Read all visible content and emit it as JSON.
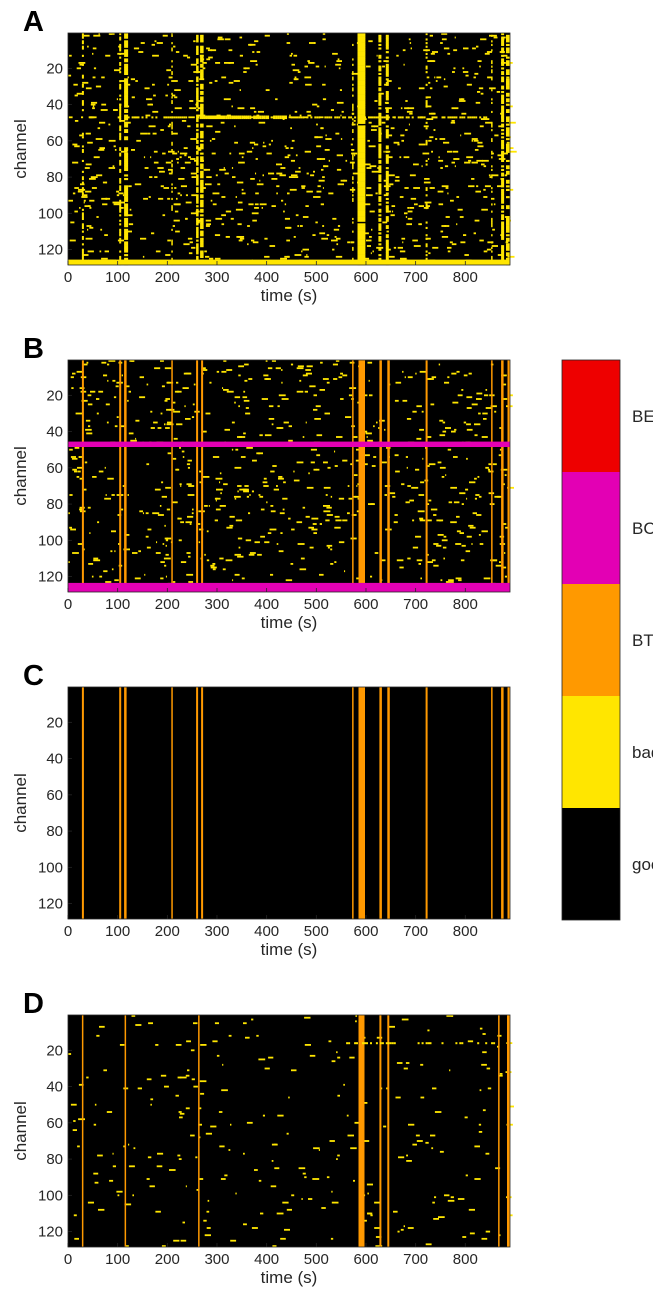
{
  "chart_data": {
    "type": "heatmap",
    "colors": {
      "good": "#000000",
      "bad": "#ffe600",
      "BT": "#ff9900",
      "BC": "#e300b4",
      "BE": "#ee0000"
    },
    "colorbar": {
      "categories": [
        "good",
        "bad",
        "BT",
        "BC",
        "BE"
      ]
    },
    "panels": [
      {
        "letter": "A",
        "xlabel": "time (s)",
        "ylabel": "channel",
        "xlim": [
          0,
          890
        ],
        "ylim": [
          1,
          128
        ],
        "xticks": [
          0,
          100,
          200,
          300,
          400,
          500,
          600,
          700,
          800
        ],
        "yticks": [
          20,
          40,
          60,
          80,
          100,
          120
        ],
        "vbands": [
          {
            "x": 28,
            "w": 4,
            "cat": "bad",
            "d": 0.35
          },
          {
            "x": 103,
            "w": 4,
            "cat": "bad",
            "d": 0.55
          },
          {
            "x": 113,
            "w": 8,
            "cat": "bad",
            "d": 0.75
          },
          {
            "x": 208,
            "w": 3,
            "cat": "bad",
            "d": 0.35
          },
          {
            "x": 258,
            "w": 5,
            "cat": "bad",
            "d": 0.7
          },
          {
            "x": 266,
            "w": 7,
            "cat": "bad",
            "d": 0.8
          },
          {
            "x": 572,
            "w": 3,
            "cat": "bad",
            "d": 0.3
          },
          {
            "x": 583,
            "w": 16,
            "cat": "bad",
            "d": 0.95
          },
          {
            "x": 625,
            "w": 6,
            "cat": "bad",
            "d": 0.7
          },
          {
            "x": 640,
            "w": 6,
            "cat": "bad",
            "d": 0.65
          },
          {
            "x": 720,
            "w": 4,
            "cat": "bad",
            "d": 0.35
          },
          {
            "x": 852,
            "w": 3,
            "cat": "bad",
            "d": 0.35
          },
          {
            "x": 872,
            "w": 6,
            "cat": "bad",
            "d": 0.75
          },
          {
            "x": 882,
            "w": 8,
            "cat": "bad",
            "d": 0.6
          }
        ],
        "hbands": [
          {
            "ch": 127,
            "h": 3,
            "cat": "bad"
          },
          {
            "ch": 47,
            "h": 1,
            "cat": "bad",
            "x0": 100,
            "x1": 880,
            "d": 0.6
          },
          {
            "ch": 47,
            "h": 2,
            "cat": "bad",
            "x0": 265,
            "x1": 440,
            "d": 0.95
          }
        ],
        "noise": {
          "seed": 11,
          "count": 900,
          "cat": "bad"
        }
      },
      {
        "letter": "B",
        "xlabel": "time (s)",
        "ylabel": "channel",
        "xlim": [
          0,
          890
        ],
        "ylim": [
          1,
          128
        ],
        "xticks": [
          0,
          100,
          200,
          300,
          400,
          500,
          600,
          700,
          800
        ],
        "yticks": [
          20,
          40,
          60,
          80,
          100,
          120
        ],
        "vbands": [
          {
            "x": 28,
            "w": 4,
            "cat": "BT"
          },
          {
            "x": 103,
            "w": 4,
            "cat": "BT"
          },
          {
            "x": 113,
            "w": 5,
            "cat": "BT"
          },
          {
            "x": 208,
            "w": 3,
            "cat": "BT"
          },
          {
            "x": 258,
            "w": 4,
            "cat": "BT"
          },
          {
            "x": 268,
            "w": 4,
            "cat": "BT"
          },
          {
            "x": 572,
            "w": 3,
            "cat": "BT"
          },
          {
            "x": 585,
            "w": 13,
            "cat": "BT"
          },
          {
            "x": 627,
            "w": 5,
            "cat": "BT"
          },
          {
            "x": 643,
            "w": 5,
            "cat": "BT"
          },
          {
            "x": 720,
            "w": 4,
            "cat": "BT"
          },
          {
            "x": 852,
            "w": 3,
            "cat": "BT"
          },
          {
            "x": 872,
            "w": 5,
            "cat": "BT"
          },
          {
            "x": 885,
            "w": 5,
            "cat": "BT"
          }
        ],
        "hbands": [
          {
            "ch": 47,
            "h": 3,
            "cat": "BC"
          },
          {
            "ch": 126,
            "h": 5,
            "cat": "BC"
          }
        ],
        "noise": {
          "seed": 22,
          "count": 750,
          "cat": "bad"
        }
      },
      {
        "letter": "C",
        "xlabel": "time (s)",
        "ylabel": "channel",
        "xlim": [
          0,
          890
        ],
        "ylim": [
          1,
          128
        ],
        "xticks": [
          0,
          100,
          200,
          300,
          400,
          500,
          600,
          700,
          800
        ],
        "yticks": [
          20,
          40,
          60,
          80,
          100,
          120
        ],
        "vbands": [
          {
            "x": 28,
            "w": 4,
            "cat": "BT"
          },
          {
            "x": 103,
            "w": 4,
            "cat": "BT"
          },
          {
            "x": 113,
            "w": 5,
            "cat": "BT"
          },
          {
            "x": 208,
            "w": 3,
            "cat": "BT"
          },
          {
            "x": 258,
            "w": 4,
            "cat": "BT"
          },
          {
            "x": 268,
            "w": 4,
            "cat": "BT"
          },
          {
            "x": 572,
            "w": 3,
            "cat": "BT"
          },
          {
            "x": 585,
            "w": 13,
            "cat": "BT"
          },
          {
            "x": 627,
            "w": 5,
            "cat": "BT"
          },
          {
            "x": 643,
            "w": 5,
            "cat": "BT"
          },
          {
            "x": 720,
            "w": 4,
            "cat": "BT"
          },
          {
            "x": 852,
            "w": 3,
            "cat": "BT"
          },
          {
            "x": 872,
            "w": 5,
            "cat": "BT"
          },
          {
            "x": 885,
            "w": 5,
            "cat": "BT"
          }
        ],
        "hbands": [],
        "noise": {
          "seed": 33,
          "count": 0,
          "cat": "bad"
        }
      },
      {
        "letter": "D",
        "xlabel": "time (s)",
        "ylabel": "channel",
        "xlim": [
          0,
          890
        ],
        "ylim": [
          1,
          128
        ],
        "xticks": [
          0,
          100,
          200,
          300,
          400,
          500,
          600,
          700,
          800
        ],
        "yticks": [
          20,
          40,
          60,
          80,
          100,
          120
        ],
        "vbands": [
          {
            "x": 28,
            "w": 3,
            "cat": "BT"
          },
          {
            "x": 114,
            "w": 3,
            "cat": "BT"
          },
          {
            "x": 262,
            "w": 3,
            "cat": "BT"
          },
          {
            "x": 585,
            "w": 12,
            "cat": "BT"
          },
          {
            "x": 627,
            "w": 4,
            "cat": "BT"
          },
          {
            "x": 643,
            "w": 4,
            "cat": "BT"
          },
          {
            "x": 866,
            "w": 3,
            "cat": "BT"
          },
          {
            "x": 884,
            "w": 6,
            "cat": "BT"
          }
        ],
        "hbands": [
          {
            "ch": 16,
            "h": 1,
            "cat": "bad",
            "x0": 560,
            "x1": 660,
            "d": 0.7
          },
          {
            "ch": 16,
            "h": 1,
            "cat": "bad",
            "x0": 700,
            "x1": 860,
            "d": 0.25
          }
        ],
        "noise": {
          "seed": 44,
          "count": 260,
          "cat": "bad"
        }
      }
    ]
  }
}
